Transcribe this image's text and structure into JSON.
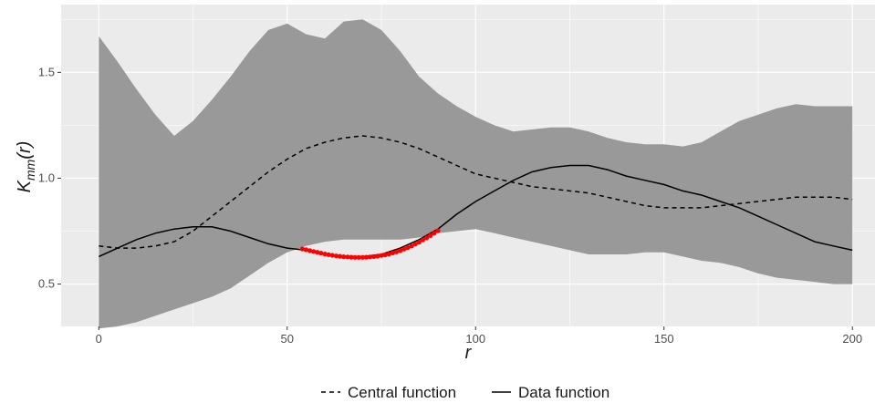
{
  "chart_data": {
    "type": "line",
    "xlabel": "r",
    "ylabel": {
      "main": "K",
      "sub": "mm",
      "arg": "(r)"
    },
    "xlim": [
      -10,
      206
    ],
    "ylim": [
      0.3,
      1.82
    ],
    "x_ticks": [
      0,
      50,
      100,
      150,
      200
    ],
    "x_tick_labels": [
      "0",
      "50",
      "100",
      "150",
      "200"
    ],
    "y_ticks": [
      0.5,
      1.0,
      1.5
    ],
    "y_tick_labels": [
      "0.5",
      "1.0",
      "1.5"
    ],
    "grid": true,
    "legend_position": "bottom",
    "colors": {
      "panel": "#ebebeb",
      "grid": "#ffffff",
      "envelope": "#999999",
      "line": "#000000",
      "highlight": "#ff0000"
    },
    "envelope": {
      "x": [
        0,
        5,
        10,
        15,
        20,
        25,
        30,
        35,
        40,
        45,
        50,
        55,
        60,
        65,
        70,
        75,
        80,
        85,
        90,
        95,
        100,
        105,
        110,
        115,
        120,
        125,
        130,
        135,
        140,
        145,
        150,
        155,
        160,
        165,
        170,
        175,
        180,
        185,
        190,
        195,
        200
      ],
      "upper": [
        1.67,
        1.55,
        1.42,
        1.3,
        1.2,
        1.27,
        1.37,
        1.48,
        1.6,
        1.7,
        1.73,
        1.68,
        1.66,
        1.74,
        1.75,
        1.7,
        1.6,
        1.48,
        1.4,
        1.34,
        1.29,
        1.25,
        1.22,
        1.23,
        1.24,
        1.24,
        1.22,
        1.19,
        1.17,
        1.16,
        1.16,
        1.15,
        1.17,
        1.22,
        1.27,
        1.3,
        1.33,
        1.35,
        1.34,
        1.34,
        1.34
      ],
      "lower": [
        0.29,
        0.3,
        0.32,
        0.35,
        0.38,
        0.41,
        0.44,
        0.48,
        0.54,
        0.6,
        0.65,
        0.68,
        0.7,
        0.71,
        0.71,
        0.71,
        0.71,
        0.72,
        0.74,
        0.75,
        0.76,
        0.74,
        0.72,
        0.7,
        0.68,
        0.66,
        0.64,
        0.64,
        0.64,
        0.65,
        0.65,
        0.63,
        0.61,
        0.6,
        0.58,
        0.55,
        0.53,
        0.52,
        0.51,
        0.5,
        0.5
      ]
    },
    "series": [
      {
        "name": "Central function",
        "style": "dashed",
        "x": [
          0,
          5,
          10,
          15,
          20,
          25,
          30,
          35,
          40,
          45,
          50,
          55,
          60,
          65,
          70,
          75,
          80,
          85,
          90,
          95,
          100,
          105,
          110,
          115,
          120,
          125,
          130,
          135,
          140,
          145,
          150,
          155,
          160,
          165,
          170,
          175,
          180,
          185,
          190,
          195,
          200
        ],
        "y": [
          0.68,
          0.67,
          0.67,
          0.68,
          0.7,
          0.75,
          0.82,
          0.89,
          0.96,
          1.03,
          1.09,
          1.14,
          1.17,
          1.19,
          1.2,
          1.19,
          1.17,
          1.14,
          1.1,
          1.06,
          1.02,
          1.0,
          0.98,
          0.96,
          0.95,
          0.94,
          0.93,
          0.91,
          0.89,
          0.87,
          0.86,
          0.86,
          0.86,
          0.87,
          0.88,
          0.89,
          0.9,
          0.91,
          0.91,
          0.91,
          0.9
        ]
      },
      {
        "name": "Data function",
        "style": "solid",
        "x": [
          0,
          5,
          10,
          15,
          20,
          25,
          30,
          35,
          40,
          45,
          50,
          55,
          60,
          65,
          70,
          75,
          80,
          85,
          90,
          95,
          100,
          105,
          110,
          115,
          120,
          125,
          130,
          135,
          140,
          145,
          150,
          155,
          160,
          165,
          170,
          175,
          180,
          185,
          190,
          195,
          200
        ],
        "y": [
          0.63,
          0.67,
          0.71,
          0.74,
          0.76,
          0.77,
          0.77,
          0.75,
          0.72,
          0.69,
          0.67,
          0.66,
          0.64,
          0.63,
          0.63,
          0.64,
          0.67,
          0.71,
          0.76,
          0.83,
          0.89,
          0.94,
          0.99,
          1.03,
          1.05,
          1.06,
          1.06,
          1.04,
          1.01,
          0.99,
          0.97,
          0.94,
          0.92,
          0.89,
          0.86,
          0.82,
          0.78,
          0.74,
          0.7,
          0.68,
          0.66
        ]
      }
    ],
    "highlight_points": {
      "x": [
        54,
        55,
        56,
        57,
        58,
        59,
        60,
        61,
        62,
        63,
        64,
        65,
        66,
        67,
        68,
        69,
        70,
        71,
        72,
        73,
        74,
        75,
        76,
        77,
        78,
        79,
        80,
        81,
        82,
        83,
        84,
        85,
        86,
        87,
        88,
        89,
        90
      ],
      "y": [
        0.666,
        0.662,
        0.658,
        0.654,
        0.65,
        0.646,
        0.642,
        0.639,
        0.636,
        0.633,
        0.631,
        0.629,
        0.628,
        0.627,
        0.626,
        0.626,
        0.626,
        0.627,
        0.628,
        0.63,
        0.632,
        0.635,
        0.638,
        0.642,
        0.647,
        0.652,
        0.658,
        0.665,
        0.672,
        0.68,
        0.689,
        0.698,
        0.708,
        0.718,
        0.729,
        0.74,
        0.752
      ]
    },
    "legend": {
      "items": [
        {
          "label": "Central function",
          "style": "dashed"
        },
        {
          "label": "Data function",
          "style": "solid"
        }
      ]
    }
  }
}
